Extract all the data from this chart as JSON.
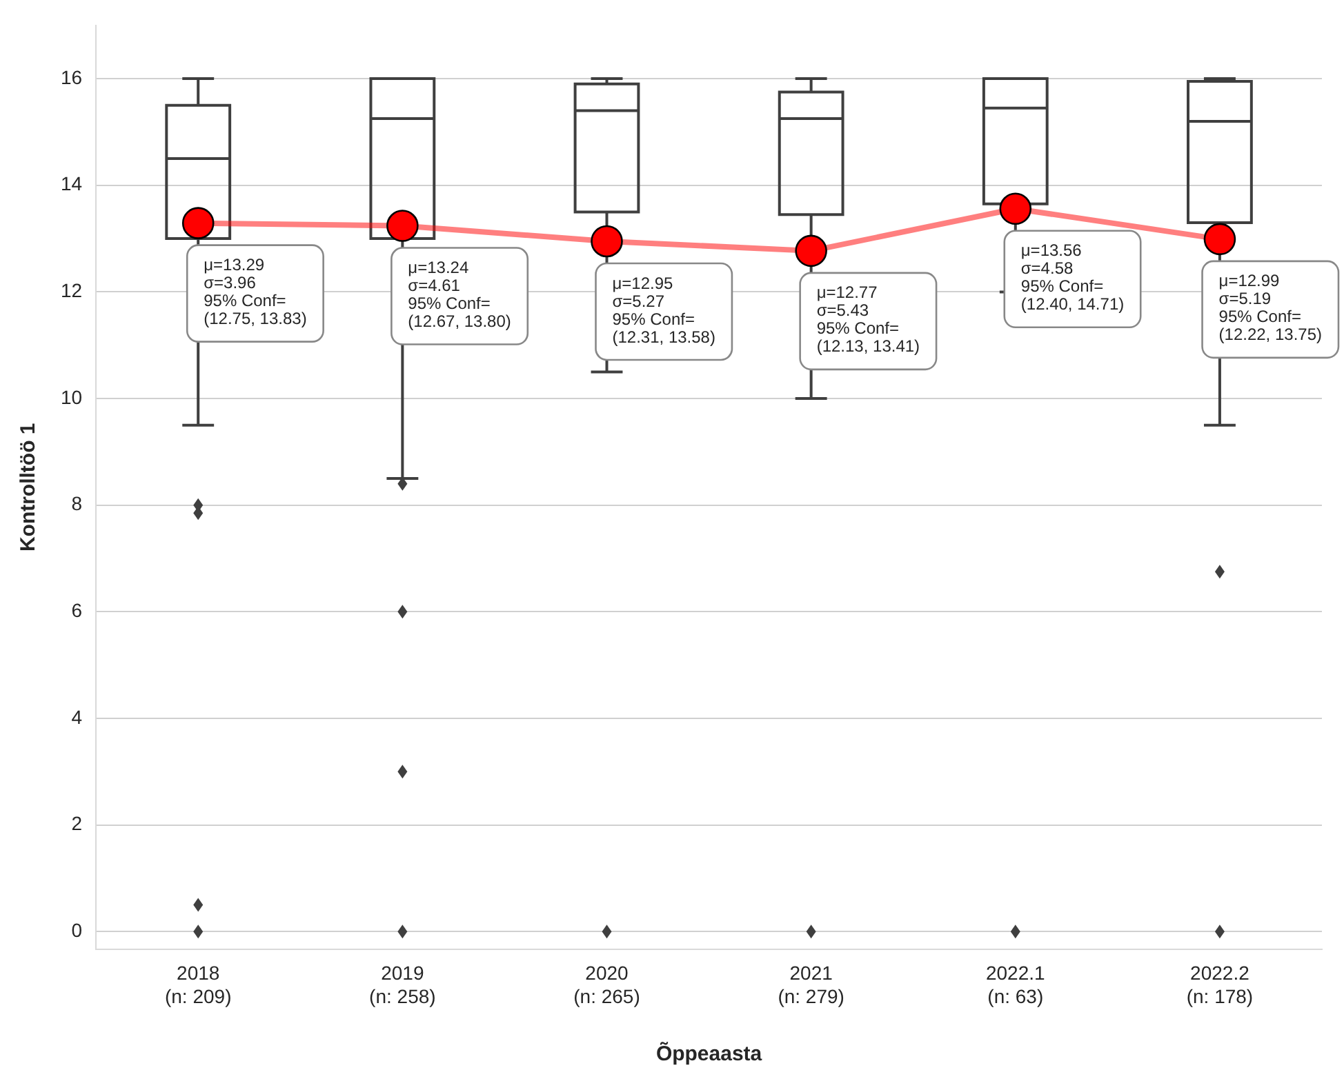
{
  "chart_data": {
    "type": "box",
    "xlabel": "Õppeaasta",
    "ylabel": "Kontrolltöö 1",
    "categories": [
      "2018\n(n: 209)",
      "2019\n(n: 258)",
      "2020\n(n: 265)",
      "2021\n(n: 279)",
      "2022.1\n(n: 63)",
      "2022.2\n(n: 178)"
    ],
    "color": "#3f3f3f",
    "boxes": [
      {
        "low": 9.5,
        "q1": 13,
        "median": 14.5,
        "q3": 15.5,
        "high": 16,
        "outliers": [
          8,
          7.85,
          0.5,
          0
        ]
      },
      {
        "low": 8.5,
        "q1": 13,
        "median": 15.25,
        "q3": 16,
        "high": 16,
        "outliers": [
          8.4,
          6,
          3,
          0
        ]
      },
      {
        "low": 10.5,
        "q1": 13.5,
        "median": 15.4,
        "q3": 15.9,
        "high": 16,
        "outliers": [
          0
        ]
      },
      {
        "low": 10,
        "q1": 13.45,
        "median": 15.25,
        "q3": 15.75,
        "high": 16,
        "outliers": [
          0
        ]
      },
      {
        "low": 12,
        "q1": 13.65,
        "median": 15.45,
        "q3": 16,
        "high": 16,
        "outliers": [
          0
        ]
      },
      {
        "low": 9.5,
        "q1": 13.3,
        "median": 15.2,
        "q3": 15.95,
        "high": 16,
        "outliers": [
          6.75,
          0
        ]
      }
    ],
    "series": [
      {
        "type": "line",
        "color": "#ff0000",
        "values": [
          13.29,
          13.24,
          12.95,
          12.77,
          13.56,
          12.99
        ]
      }
    ],
    "marker": "circle",
    "line_style": "solid",
    "ylim": [
      -0.33,
      17
    ],
    "yticks": [
      0,
      2,
      4,
      6,
      8,
      10,
      12,
      14,
      16
    ],
    "grid": "y",
    "legend": false,
    "annotations": [
      {
        "text": "μ=13.29\nσ=3.96\n95% Conf=\n(12.75, 13.83)",
        "x": "2018\n(n: 209)",
        "y": 13.29
      },
      {
        "text": "μ=13.24\nσ=4.61\n95% Conf=\n(12.67, 13.80)",
        "x": "2019\n(n: 258)",
        "y": 13.24
      },
      {
        "text": "μ=12.95\nσ=5.27\n95% Conf=\n(12.31, 13.58)",
        "x": "2020\n(n: 265)",
        "y": 12.95
      },
      {
        "text": "μ=12.77\nσ=5.43\n95% Conf=\n(12.13, 13.41)",
        "x": "2021\n(n: 279)",
        "y": 12.77
      },
      {
        "text": "μ=13.56\nσ=4.58\n95% Conf=\n(12.40, 14.71)",
        "x": "2022.1\n(n: 63)",
        "y": 13.56
      },
      {
        "text": "μ=12.99\nσ=5.19\n95% Conf=\n(12.22, 13.75)",
        "x": "2022.2\n(n: 178)",
        "y": 12.99
      }
    ]
  }
}
